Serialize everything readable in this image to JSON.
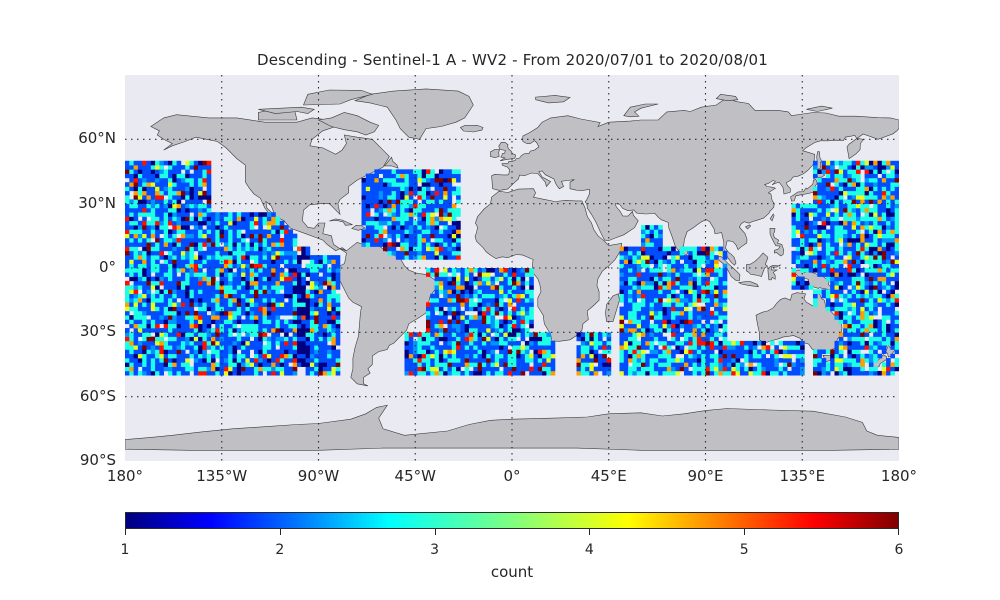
{
  "title": "Descending - Sentinel-1 A - WV2 - From 2020/07/01 to 2020/08/01",
  "lat_labels": [
    "60°N",
    "30°N",
    "0°",
    "30°S",
    "60°S",
    "90°S"
  ],
  "lon_labels": [
    "180°",
    "135°W",
    "90°W",
    "45°W",
    "0°",
    "45°E",
    "90°E",
    "135°E",
    "180°"
  ],
  "colorbar": {
    "label": "count",
    "ticks": [
      "1",
      "2",
      "3",
      "4",
      "5",
      "6"
    ],
    "min": 1,
    "max": 6,
    "colormap": "jet"
  },
  "colors": {
    "ocean": "#eaeaf2",
    "land": "#bfbfc4",
    "coast": "#3a3a3a",
    "grid": "#2b2b2b",
    "jet": [
      "#00007f",
      "#0000ff",
      "#007fff",
      "#00ffff",
      "#7fff7f",
      "#ffff00",
      "#ff7f00",
      "#ff0000",
      "#7f0000"
    ]
  },
  "chart_data": {
    "type": "heatmap",
    "projection": "plate carree",
    "lon_range": [
      -180,
      180
    ],
    "lat_range": [
      -90,
      90
    ],
    "value_range": [
      1,
      6
    ],
    "observed_lat_band": [
      -50,
      50
    ],
    "dominant_values": "mostly 2-3 (blue to cyan), scattered 4-6",
    "swaths": [
      {
        "lon": [
          -180,
          -140
        ],
        "lat": [
          -50,
          50
        ]
      },
      {
        "lon": [
          -140,
          -100
        ],
        "lat": [
          -50,
          25
        ]
      },
      {
        "lon": [
          -102,
          -95
        ],
        "lat": [
          -45,
          10
        ],
        "note": "dense 1-2 strip"
      },
      {
        "lon": [
          -95,
          -80
        ],
        "lat": [
          -50,
          5
        ]
      },
      {
        "lon": [
          -70,
          -25
        ],
        "lat": [
          5,
          45
        ]
      },
      {
        "lon": [
          -40,
          10
        ],
        "lat": [
          -50,
          0
        ]
      },
      {
        "lon": [
          -50,
          20
        ],
        "lat": [
          -50,
          -30
        ]
      },
      {
        "lon": [
          30,
          45
        ],
        "lat": [
          -50,
          -30
        ]
      },
      {
        "lon": [
          50,
          100
        ],
        "lat": [
          -50,
          10
        ]
      },
      {
        "lon": [
          60,
          70
        ],
        "lat": [
          0,
          20
        ]
      },
      {
        "lon": [
          100,
          135
        ],
        "lat": [
          -50,
          -35
        ]
      },
      {
        "lon": [
          130,
          140
        ],
        "lat": [
          -10,
          30
        ]
      },
      {
        "lon": [
          140,
          180
        ],
        "lat": [
          -50,
          50
        ]
      }
    ]
  }
}
